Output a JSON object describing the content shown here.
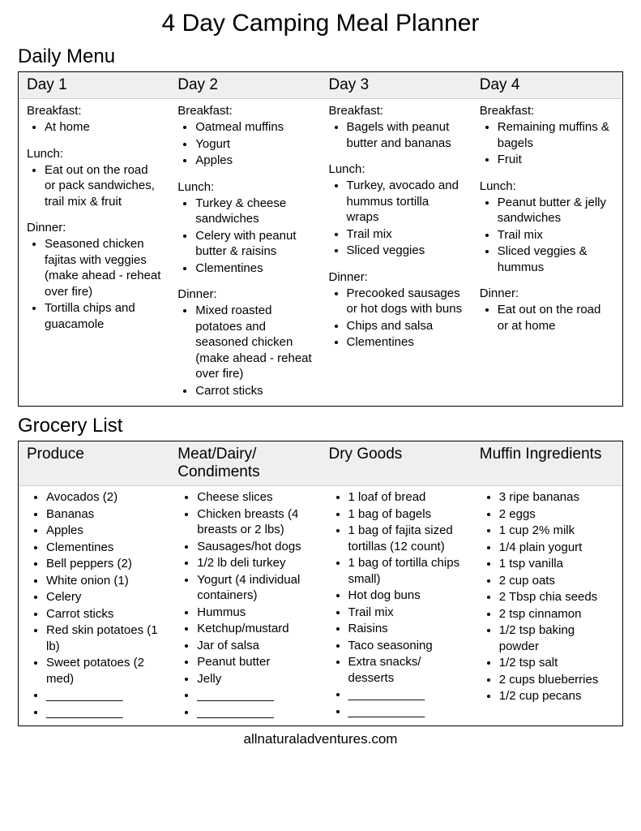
{
  "title": "4 Day Camping Meal Planner",
  "daily_menu": {
    "heading": "Daily Menu",
    "days": [
      {
        "label": "Day 1",
        "meals": [
          {
            "name": "Breakfast:",
            "items": [
              "At home"
            ]
          },
          {
            "name": "Lunch:",
            "items": [
              "Eat out on the road or pack sandwiches, trail mix & fruit"
            ]
          },
          {
            "name": "Dinner:",
            "items": [
              "Seasoned chicken fajitas with veggies (make ahead - reheat over fire)",
              "Tortilla  chips  and guacamole"
            ]
          }
        ]
      },
      {
        "label": "Day 2",
        "meals": [
          {
            "name": "Breakfast:",
            "items": [
              "Oatmeal muffins",
              "Yogurt",
              "Apples"
            ]
          },
          {
            "name": "Lunch:",
            "items": [
              "Turkey & cheese sandwiches",
              "Celery with peanut butter & raisins",
              "Clementines"
            ]
          },
          {
            "name": "Dinner:",
            "items": [
              "Mixed roasted potatoes and seasoned chicken (make ahead - reheat over fire)",
              "Carrot sticks"
            ]
          }
        ]
      },
      {
        "label": "Day 3",
        "meals": [
          {
            "name": "Breakfast:",
            "items": [
              "Bagels with peanut butter and bananas"
            ]
          },
          {
            "name": "Lunch:",
            "items": [
              "Turkey, avocado and hummus tortilla wraps",
              "Trail mix",
              "Sliced veggies"
            ]
          },
          {
            "name": "Dinner:",
            "items": [
              "Precooked sausages or hot dogs with buns",
              "Chips and salsa",
              "Clementines"
            ]
          }
        ]
      },
      {
        "label": "Day 4",
        "meals": [
          {
            "name": "Breakfast:",
            "items": [
              "Remaining muffins & bagels",
              "Fruit"
            ]
          },
          {
            "name": "Lunch:",
            "items": [
              "Peanut butter & jelly sandwiches",
              "Trail mix",
              "Sliced veggies & hummus"
            ]
          },
          {
            "name": "Dinner:",
            "items": [
              "Eat out on the road or at home"
            ]
          }
        ]
      }
    ]
  },
  "grocery": {
    "heading": "Grocery List",
    "blank": "____________",
    "categories": [
      {
        "label": "Produce",
        "items": [
          "Avocados (2)",
          "Bananas",
          "Apples",
          "Clementines",
          "Bell peppers (2)",
          "White onion (1)",
          "Celery",
          "Carrot sticks",
          "Red skin potatoes (1 lb)",
          "Sweet potatoes (2 med)"
        ],
        "blanks": 2
      },
      {
        "label": "Meat/Dairy/ Condiments",
        "items": [
          "Cheese slices",
          "Chicken breasts (4 breasts or 2 lbs)",
          "Sausages/hot dogs",
          "1/2 lb deli turkey",
          "Yogurt (4 individual containers)",
          "Hummus",
          "Ketchup/mustard",
          "Jar of salsa",
          "Peanut butter",
          "Jelly"
        ],
        "blanks": 2
      },
      {
        "label": "Dry Goods",
        "items": [
          "1 loaf of bread",
          "1 bag of bagels",
          "1 bag of fajita sized tortillas (12 count)",
          "1 bag of tortilla chips small)",
          "Hot dog buns",
          "Trail mix",
          "Raisins",
          "Taco seasoning",
          "Extra snacks/ desserts"
        ],
        "blanks": 2
      },
      {
        "label": "Muffin Ingredients",
        "items": [
          "3 ripe bananas",
          "2 eggs",
          "1 cup 2% milk",
          "1/4 plain yogurt",
          "1 tsp vanilla",
          "2 cup oats",
          "2 Tbsp chia seeds",
          "2 tsp cinnamon",
          "1/2 tsp baking powder",
          "1/2 tsp salt",
          "2 cups blueberries",
          "1/2 cup pecans"
        ],
        "blanks": 0
      }
    ]
  },
  "footer": "allnaturaladventures.com"
}
